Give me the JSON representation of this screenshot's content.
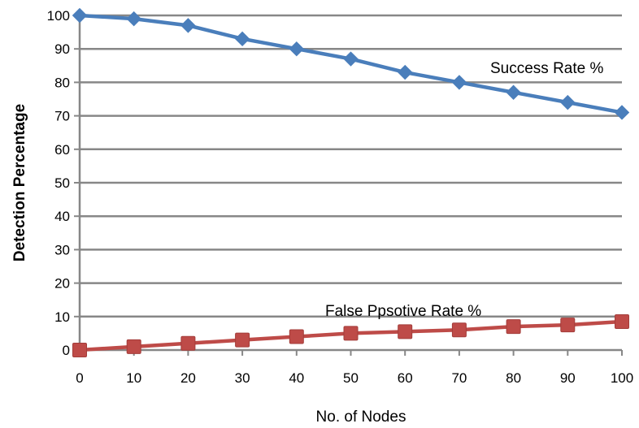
{
  "chart_data": {
    "type": "line",
    "title": "",
    "xlabel": "No. of Nodes",
    "ylabel": "Detection Percentage",
    "x": [
      0,
      10,
      20,
      30,
      40,
      50,
      60,
      70,
      80,
      90,
      100
    ],
    "xlim": [
      0,
      100
    ],
    "ylim": [
      0,
      100
    ],
    "x_ticks": [
      "0",
      "10",
      "20",
      "30",
      "40",
      "50",
      "60",
      "70",
      "80",
      "90",
      "100"
    ],
    "y_ticks": [
      "0",
      "10",
      "20",
      "30",
      "40",
      "50",
      "60",
      "70",
      "80",
      "90",
      "100"
    ],
    "grid": true,
    "series": [
      {
        "name": "Success Rate %",
        "color": "#4a7ebb",
        "marker": "diamond",
        "values": [
          100,
          99,
          97,
          93,
          90,
          87,
          83,
          80,
          77,
          74,
          71
        ]
      },
      {
        "name": "False Ppsotive Rate %",
        "color": "#be4b48",
        "marker": "square",
        "values": [
          0,
          1,
          2,
          3,
          4,
          5,
          5.5,
          6,
          7,
          7.5,
          8.5
        ]
      }
    ]
  }
}
